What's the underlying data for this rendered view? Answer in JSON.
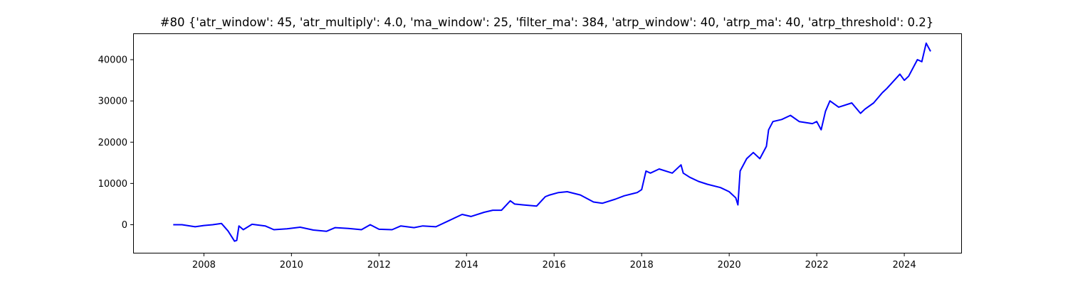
{
  "chart_data": {
    "type": "line",
    "title": "#80 {'atr_window': 45, 'atr_multiply': 4.0, 'ma_window': 25, 'filter_ma': 384, 'atrp_window': 40, 'atrp_ma': 40, 'atrp_threshold': 0.2}",
    "xlabel": "",
    "ylabel": "",
    "xlim": [
      2006.4,
      2025.3
    ],
    "ylim": [
      -6800,
      46200
    ],
    "x_ticks": [
      2008,
      2010,
      2012,
      2014,
      2016,
      2018,
      2020,
      2022,
      2024
    ],
    "x_tick_labels": [
      "2008",
      "2010",
      "2012",
      "2014",
      "2016",
      "2018",
      "2020",
      "2022",
      "2024"
    ],
    "y_ticks": [
      0,
      10000,
      20000,
      30000,
      40000
    ],
    "y_tick_labels": [
      "0",
      "10000",
      "20000",
      "30000",
      "40000"
    ],
    "grid": false,
    "series": [
      {
        "color": "#0000ff",
        "x": [
          2007.3,
          2007.5,
          2007.8,
          2008.0,
          2008.2,
          2008.4,
          2008.55,
          2008.7,
          2008.75,
          2008.8,
          2008.9,
          2009.1,
          2009.4,
          2009.6,
          2009.9,
          2010.2,
          2010.5,
          2010.8,
          2011.0,
          2011.3,
          2011.6,
          2011.8,
          2012.0,
          2012.3,
          2012.5,
          2012.8,
          2013.0,
          2013.3,
          2013.6,
          2013.9,
          2014.1,
          2014.4,
          2014.6,
          2014.8,
          2015.0,
          2015.1,
          2015.3,
          2015.6,
          2015.8,
          2015.9,
          2016.1,
          2016.3,
          2016.6,
          2016.9,
          2017.1,
          2017.4,
          2017.6,
          2017.9,
          2018.0,
          2018.1,
          2018.2,
          2018.4,
          2018.7,
          2018.9,
          2018.95,
          2019.1,
          2019.3,
          2019.5,
          2019.8,
          2020.0,
          2020.15,
          2020.2,
          2020.25,
          2020.4,
          2020.55,
          2020.7,
          2020.85,
          2020.9,
          2021.0,
          2021.2,
          2021.4,
          2021.6,
          2021.9,
          2022.0,
          2022.1,
          2022.2,
          2022.3,
          2022.5,
          2022.8,
          2023.0,
          2023.1,
          2023.3,
          2023.5,
          2023.6,
          2023.9,
          2024.0,
          2024.1,
          2024.3,
          2024.4,
          2024.5,
          2024.6
        ],
        "y": [
          0,
          0,
          -500,
          -200,
          0,
          300,
          -1500,
          -4000,
          -3800,
          -300,
          -1200,
          100,
          -300,
          -1200,
          -1000,
          -600,
          -1300,
          -1600,
          -700,
          -900,
          -1200,
          0,
          -1100,
          -1200,
          -300,
          -700,
          -300,
          -500,
          1000,
          2500,
          2000,
          3000,
          3500,
          3500,
          5800,
          5000,
          4800,
          4500,
          6800,
          7200,
          7800,
          8000,
          7200,
          5500,
          5200,
          6200,
          7000,
          7800,
          8500,
          13000,
          12500,
          13500,
          12500,
          14500,
          12500,
          11500,
          10500,
          9800,
          9000,
          8000,
          6500,
          4800,
          13000,
          16000,
          17500,
          16000,
          19000,
          23000,
          25000,
          25500,
          26500,
          25000,
          24500,
          25000,
          23000,
          27500,
          30000,
          28500,
          29500,
          27000,
          28000,
          29500,
          32000,
          33000,
          36500,
          35000,
          36000,
          40000,
          39500,
          44000,
          42000
        ]
      }
    ]
  }
}
